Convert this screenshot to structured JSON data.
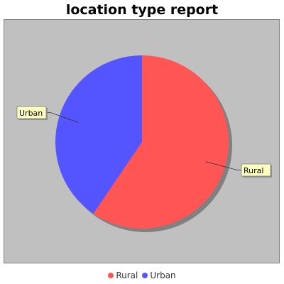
{
  "chart_data": {
    "type": "pie",
    "title": "location type report",
    "slices": [
      {
        "label": "Rural",
        "value": 59.5,
        "color": "#ff5555"
      },
      {
        "label": "Urban",
        "value": 40.5,
        "color": "#5555ff"
      }
    ],
    "legend_position": "bottom",
    "background_color": "#c0c0c0"
  }
}
